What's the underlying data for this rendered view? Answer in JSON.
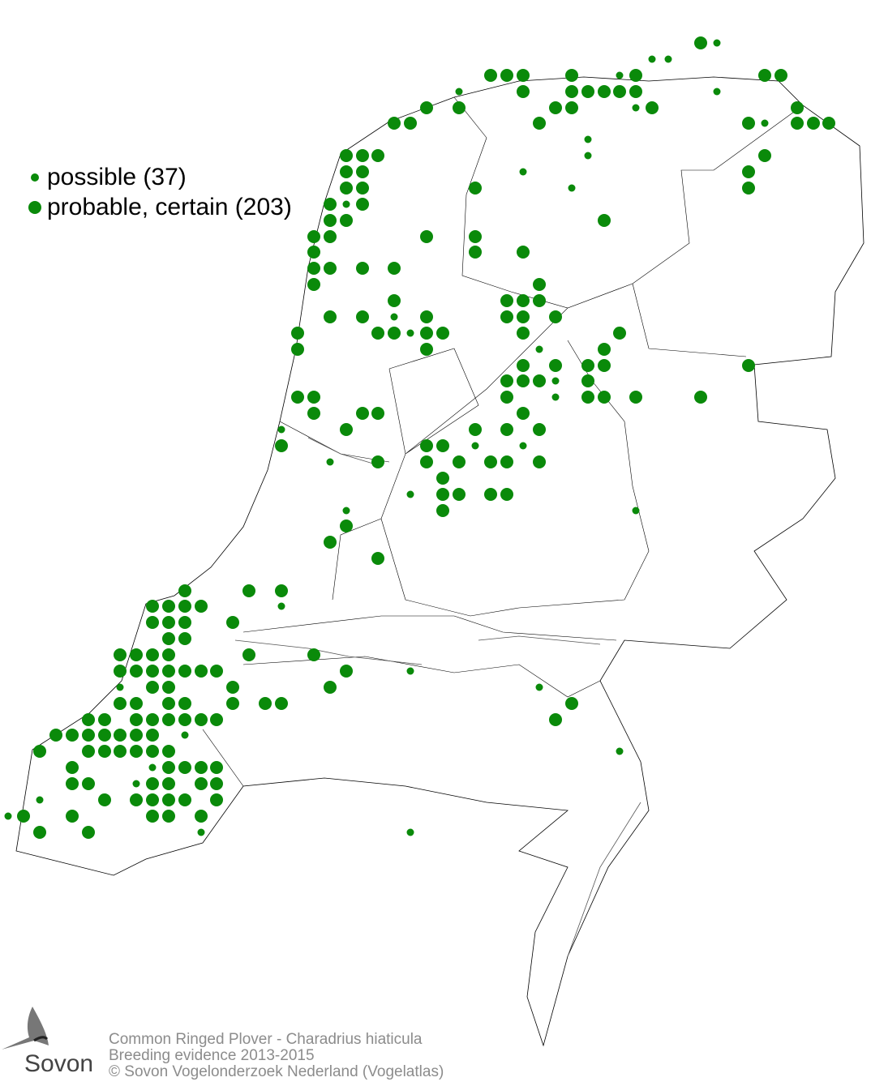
{
  "legend": {
    "items": [
      {
        "label": "possible (37)",
        "symbol": "small-dot"
      },
      {
        "label": "probable, certain (203)",
        "symbol": "large-dot"
      }
    ]
  },
  "colors": {
    "dot": "#0a8a0a",
    "outline": "#000000",
    "footer_text": "#8c8c8c"
  },
  "footer": {
    "species": "Common Ringed Plover - Charadrius hiaticula",
    "subtitle": "Breeding evidence 2013-2015",
    "copyright": "© Sovon Vogelonderzoek Nederland (Vogelatlas)"
  },
  "logo": {
    "text": "Sovon"
  }
}
